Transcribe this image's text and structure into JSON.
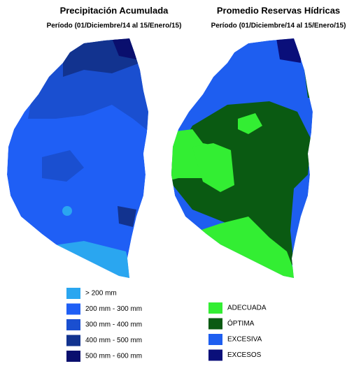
{
  "maps": [
    {
      "title": "Precipitación Acumulada",
      "subtitle": "Período (01/Diciembre/14 al 15/Enero/15)",
      "legend": [
        {
          "label": "> 200 mm",
          "color": "#2aa6f0"
        },
        {
          "label": "200 mm - 300 mm",
          "color": "#1f5ff5"
        },
        {
          "label": "300 mm - 400 mm",
          "color": "#1a4fd0"
        },
        {
          "label": "400 mm - 500 mm",
          "color": "#12338f"
        },
        {
          "label": "500 mm - 600 mm",
          "color": "#0a0f6e"
        }
      ]
    },
    {
      "title": "Promedio Reservas Hídricas",
      "subtitle": "Período (01/Diciembre/14 al 15/Enero/15)",
      "legend": [
        {
          "label": "ADECUADA",
          "color": "#33ee33"
        },
        {
          "label": "ÓPTIMA",
          "color": "#0a5a12"
        },
        {
          "label": "EXCESIVA",
          "color": "#1e5ef0"
        },
        {
          "label": "EXCESOS",
          "color": "#0a0f7a"
        }
      ]
    }
  ]
}
